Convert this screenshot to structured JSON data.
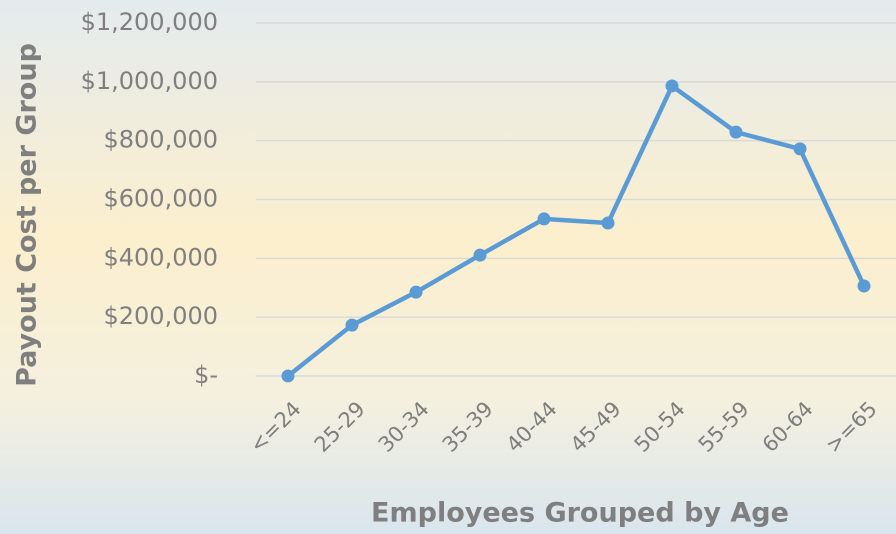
{
  "chart_data": {
    "type": "line",
    "x_label": "Employees Grouped by Age",
    "y_label": "Payout Cost per Group",
    "categories": [
      "<=24",
      "25-29",
      "30-34",
      "35-39",
      "40-44",
      "45-49",
      "50-54",
      "55-59",
      "60-64",
      ">=65"
    ],
    "values": [
      0,
      173000,
      285000,
      411000,
      534000,
      520000,
      986000,
      829000,
      772000,
      306000
    ],
    "color": "#5b9bd5",
    "ylim": [
      0,
      1200000
    ],
    "yticks": [
      {
        "value": 0,
        "label": "$-"
      },
      {
        "value": 200000,
        "label": "$200,000"
      },
      {
        "value": 400000,
        "label": "$400,000"
      },
      {
        "value": 600000,
        "label": "$600,000"
      },
      {
        "value": 800000,
        "label": "$800,000"
      },
      {
        "value": 1000000,
        "label": "$1,000,000"
      },
      {
        "value": 1200000,
        "label": "$1,200,000"
      }
    ],
    "grid": true
  }
}
